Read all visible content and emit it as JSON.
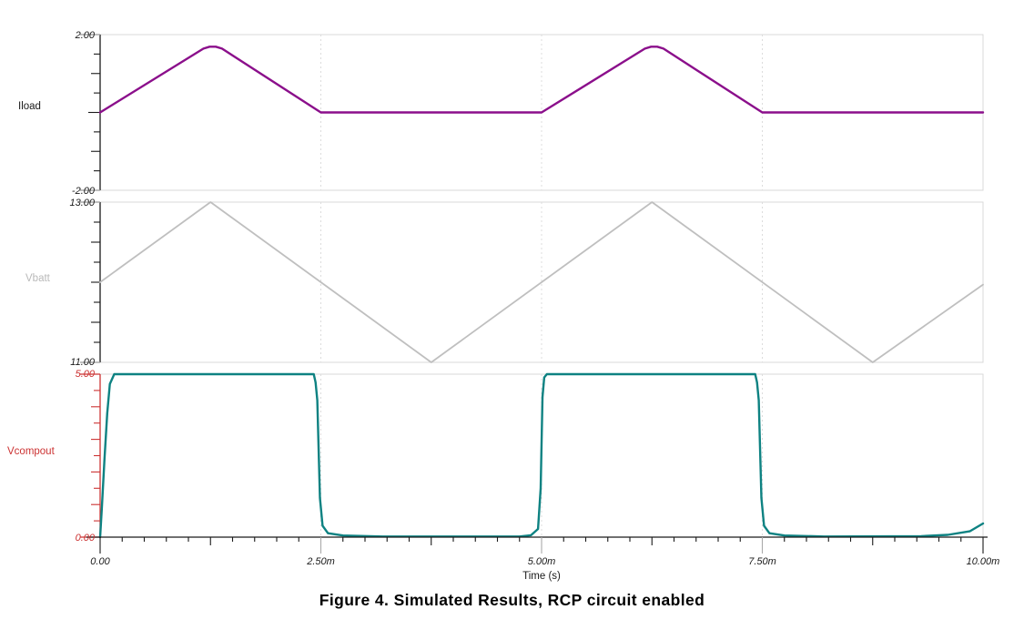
{
  "figure_caption": "Figure 4. Simulated Results, RCP circuit enabled",
  "chart_data": {
    "type": "line",
    "title": "Simulated Results, RCP circuit enabled",
    "layout": "3 stacked panels sharing one time axis",
    "grid": "vertical dashed gridlines at major time ticks",
    "xaxis": {
      "label": "Time (s)",
      "min_ms": 0,
      "max_ms": 10,
      "major_ticks_ms": [
        0,
        2.5,
        5,
        7.5,
        10
      ],
      "tick_labels": [
        "0.00",
        "2.50m",
        "5.00m",
        "7.50m",
        "10.00m"
      ],
      "medium_tick_step_ms": 1.25,
      "minor_tick_step_ms": 0.25
    },
    "panels": [
      {
        "signal": "Iload",
        "color": "#8b0f8b",
        "label_color": "#1a1a1a",
        "axis_color": "#1a1a1a",
        "end_tick_color": "#999999",
        "stroke_width": 2.4,
        "ymin": -2,
        "ymax": 2,
        "ymin_label": "-2.00",
        "ymax_label": "2.00",
        "y_tick_step": 0.5,
        "y_major_every": 1,
        "description": "triangular current pulse, 0 to ~1.7 peak at 1.25m, back to 0 at 2.5m, flat, repeats at 5m",
        "points_ms_v": [
          [
            0,
            0
          ],
          [
            1.17,
            1.64
          ],
          [
            1.24,
            1.69
          ],
          [
            1.31,
            1.69
          ],
          [
            1.38,
            1.64
          ],
          [
            2.5,
            0
          ],
          [
            5,
            0
          ],
          [
            6.17,
            1.64
          ],
          [
            6.24,
            1.69
          ],
          [
            6.31,
            1.69
          ],
          [
            6.38,
            1.64
          ],
          [
            7.5,
            0
          ],
          [
            10,
            0
          ]
        ]
      },
      {
        "signal": "Vbatt",
        "color": "#bfbfbf",
        "label_color": "#b9b9b9",
        "axis_color": "#1a1a1a",
        "end_tick_color": "#999999",
        "stroke_width": 1.8,
        "ymin": 11,
        "ymax": 13,
        "ymin_label": "11.00",
        "ymax_label": "13.00",
        "y_tick_step": 0.25,
        "y_major_every": 0.5,
        "description": "triangle wave 11V-13V, period 5ms, starts at 12V",
        "points_ms_v": [
          [
            0,
            12
          ],
          [
            1.25,
            13
          ],
          [
            3.75,
            11
          ],
          [
            6.25,
            13
          ],
          [
            8.75,
            11
          ],
          [
            10,
            11.97
          ]
        ]
      },
      {
        "signal": "Vcompout",
        "color": "#0e8282",
        "label_color": "#cc3333",
        "axis_color": "#cc3333",
        "end_tick_color": "#cc3333",
        "stroke_width": 2.4,
        "ymin": 0,
        "ymax": 5,
        "ymin_label": "0.00",
        "ymax_label": "5.00",
        "y_tick_step": 0.5,
        "y_major_every": 1,
        "description": "comparator output square wave: high 5V from 0 to 2.5m and 5m to 7.5m, low otherwise, slight rise at 10m",
        "points_ms_v": [
          [
            0,
            0
          ],
          [
            0.02,
            0.9
          ],
          [
            0.05,
            2.4
          ],
          [
            0.08,
            3.8
          ],
          [
            0.11,
            4.7
          ],
          [
            0.16,
            5
          ],
          [
            2.42,
            5
          ],
          [
            2.44,
            4.75
          ],
          [
            2.46,
            4.2
          ],
          [
            2.49,
            1.2
          ],
          [
            2.52,
            0.35
          ],
          [
            2.58,
            0.12
          ],
          [
            2.75,
            0.05
          ],
          [
            3.2,
            0.02
          ],
          [
            4.75,
            0.02
          ],
          [
            4.88,
            0.06
          ],
          [
            4.96,
            0.25
          ],
          [
            4.99,
            1.5
          ],
          [
            5.01,
            4.3
          ],
          [
            5.03,
            4.9
          ],
          [
            5.06,
            5
          ],
          [
            7.42,
            5
          ],
          [
            7.44,
            4.75
          ],
          [
            7.46,
            4.2
          ],
          [
            7.49,
            1.2
          ],
          [
            7.52,
            0.35
          ],
          [
            7.58,
            0.12
          ],
          [
            7.75,
            0.05
          ],
          [
            8.2,
            0.02
          ],
          [
            9.3,
            0.03
          ],
          [
            9.6,
            0.07
          ],
          [
            9.85,
            0.18
          ],
          [
            10,
            0.42
          ]
        ]
      }
    ]
  }
}
